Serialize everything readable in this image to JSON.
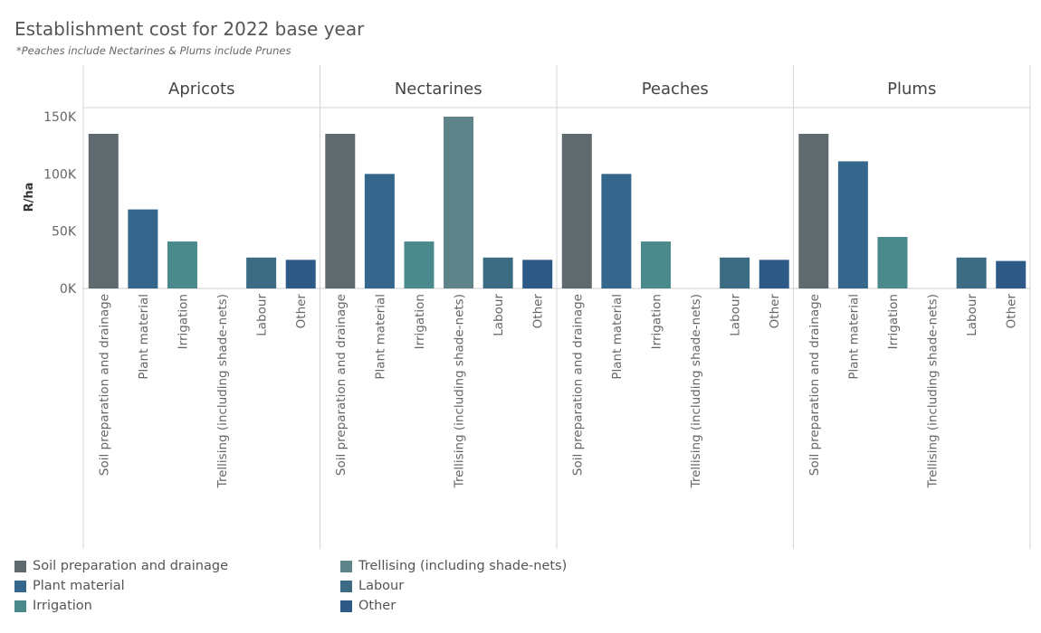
{
  "title": "Establishment cost for 2022 base year",
  "subtitle": "*Peaches include Nectarines & Plums include Prunes",
  "chart_data": {
    "type": "bar",
    "ylabel": "R/ha",
    "ylim": [
      0,
      160000
    ],
    "yticks": [
      0,
      50000,
      100000,
      150000
    ],
    "ytick_labels": [
      "0K",
      "50K",
      "100K",
      "150K"
    ],
    "categories": [
      "Soil preparation and drainage",
      "Plant material",
      "Irrigation",
      "Trellising (including shade-nets)",
      "Labour",
      "Other"
    ],
    "colors": [
      "#5f6a6e",
      "#35678d",
      "#4b8a8c",
      "#5e8388",
      "#3c6b84",
      "#2e5a87"
    ],
    "panels": [
      {
        "name": "Apricots",
        "values": [
          135000,
          69000,
          41000,
          0,
          27000,
          25000
        ]
      },
      {
        "name": "Nectarines",
        "values": [
          135000,
          100000,
          41000,
          150000,
          27000,
          25000
        ]
      },
      {
        "name": "Peaches",
        "values": [
          135000,
          100000,
          41000,
          0,
          27000,
          25000
        ]
      },
      {
        "name": "Plums",
        "values": [
          135000,
          111000,
          45000,
          0,
          27000,
          24000
        ]
      }
    ]
  },
  "legend": {
    "items": [
      "Soil preparation and drainage",
      "Plant material",
      "Irrigation",
      "Trellising (including shade-nets)",
      "Labour",
      "Other"
    ]
  }
}
